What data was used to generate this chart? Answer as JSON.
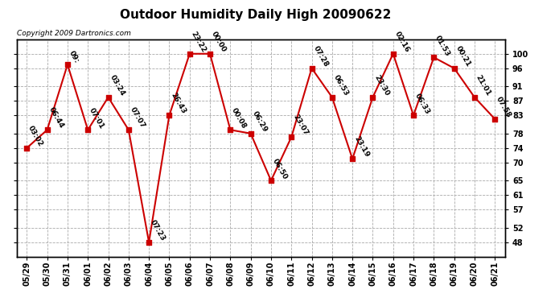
{
  "title": "Outdoor Humidity Daily High 20090622",
  "copyright": "Copyright 2009 Dartronics.com",
  "x_labels": [
    "05/29",
    "05/30",
    "05/31",
    "06/01",
    "06/02",
    "06/03",
    "06/04",
    "06/05",
    "06/06",
    "06/07",
    "06/08",
    "06/09",
    "06/10",
    "06/11",
    "06/12",
    "06/13",
    "06/14",
    "06/15",
    "06/16",
    "06/17",
    "06/18",
    "06/19",
    "06/20",
    "06/21"
  ],
  "y_values": [
    74,
    79,
    97,
    79,
    88,
    79,
    48,
    83,
    100,
    100,
    79,
    78,
    65,
    77,
    96,
    88,
    71,
    88,
    100,
    83,
    99,
    96,
    88,
    82
  ],
  "point_labels": [
    "03:02",
    "06:44",
    "09:",
    "07:01",
    "03:24",
    "07:07",
    "07:23",
    "26:43",
    "23:22",
    "00:00",
    "00:08",
    "06:29",
    "06:50",
    "23:07",
    "07:28",
    "06:53",
    "23:19",
    "23:30",
    "02:16",
    "06:33",
    "01:53",
    "00:21",
    "21:01",
    "07:58"
  ],
  "y_ticks": [
    48,
    52,
    57,
    61,
    65,
    70,
    74,
    78,
    83,
    87,
    91,
    96,
    100
  ],
  "ylim": [
    44,
    104
  ],
  "xlim": [
    -0.5,
    23.5
  ],
  "line_color": "#cc0000",
  "marker_color": "#cc0000",
  "background_color": "#ffffff",
  "grid_color": "#aaaaaa",
  "title_fontsize": 11,
  "label_fontsize": 6.5,
  "tick_fontsize": 7,
  "copyright_fontsize": 6.5
}
